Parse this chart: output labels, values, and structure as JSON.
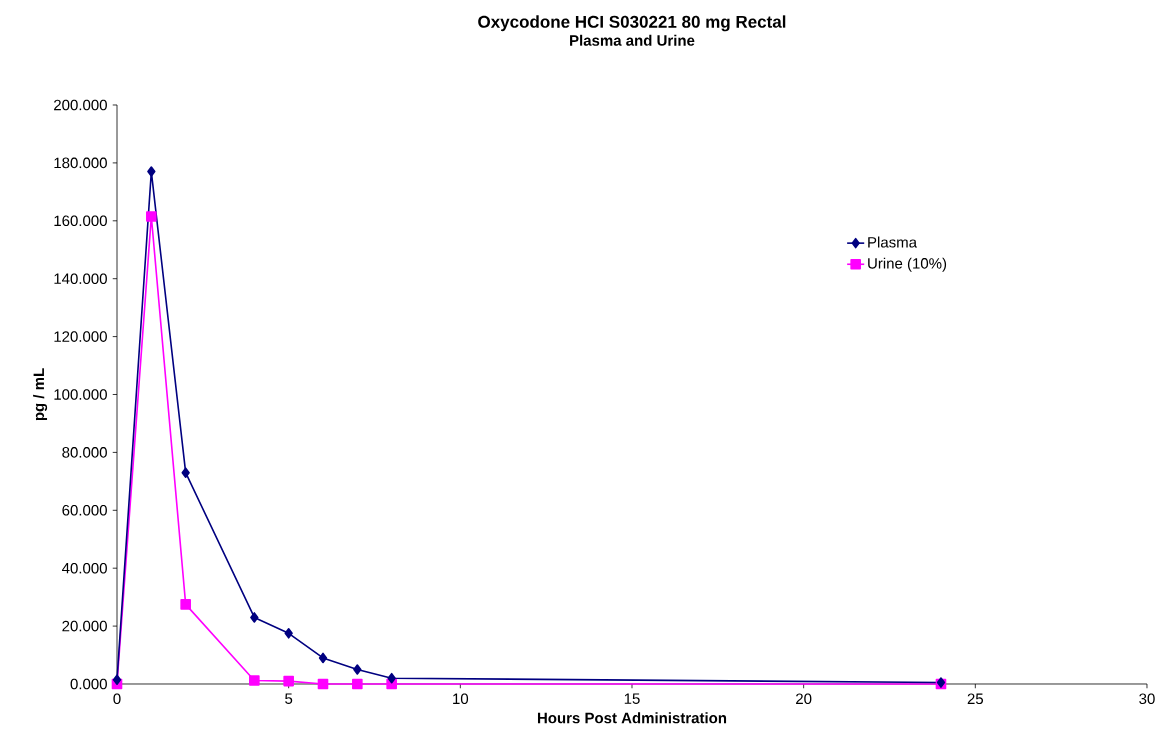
{
  "chart_data": {
    "type": "line",
    "title": "Oxycodone HCI  S030221 80 mg Rectal",
    "subtitle": "Plasma and Urine",
    "xlabel": "Hours Post Administration",
    "ylabel": "pg / mL",
    "xlim": [
      0,
      30
    ],
    "xticks": [
      0,
      5,
      10,
      15,
      20,
      25,
      30
    ],
    "ylim": [
      0,
      200
    ],
    "yticks": [
      {
        "value": 0,
        "label": "0.000"
      },
      {
        "value": 20,
        "label": "20.000"
      },
      {
        "value": 40,
        "label": "40.000"
      },
      {
        "value": 60,
        "label": "60.000"
      },
      {
        "value": 80,
        "label": "80.000"
      },
      {
        "value": 100,
        "label": "100.000"
      },
      {
        "value": 120,
        "label": "120.000"
      },
      {
        "value": 140,
        "label": "140.000"
      },
      {
        "value": 160,
        "label": "160.000"
      },
      {
        "value": 180,
        "label": "180.000"
      },
      {
        "value": 200,
        "label": "200.000"
      }
    ],
    "x": [
      0,
      1,
      2,
      4,
      5,
      6,
      7,
      8,
      24
    ],
    "legend": "top right",
    "series": [
      {
        "name": "Plasma",
        "color": "#000080",
        "marker": "diamond",
        "values": [
          1.5,
          177,
          73,
          23,
          17.5,
          9,
          5,
          2,
          0.5
        ]
      },
      {
        "name": "Urine (10%)",
        "color": "#ff00ff",
        "marker": "square",
        "values": [
          0,
          161.5,
          27.5,
          1.2,
          1,
          0,
          0,
          0,
          0
        ]
      }
    ]
  }
}
